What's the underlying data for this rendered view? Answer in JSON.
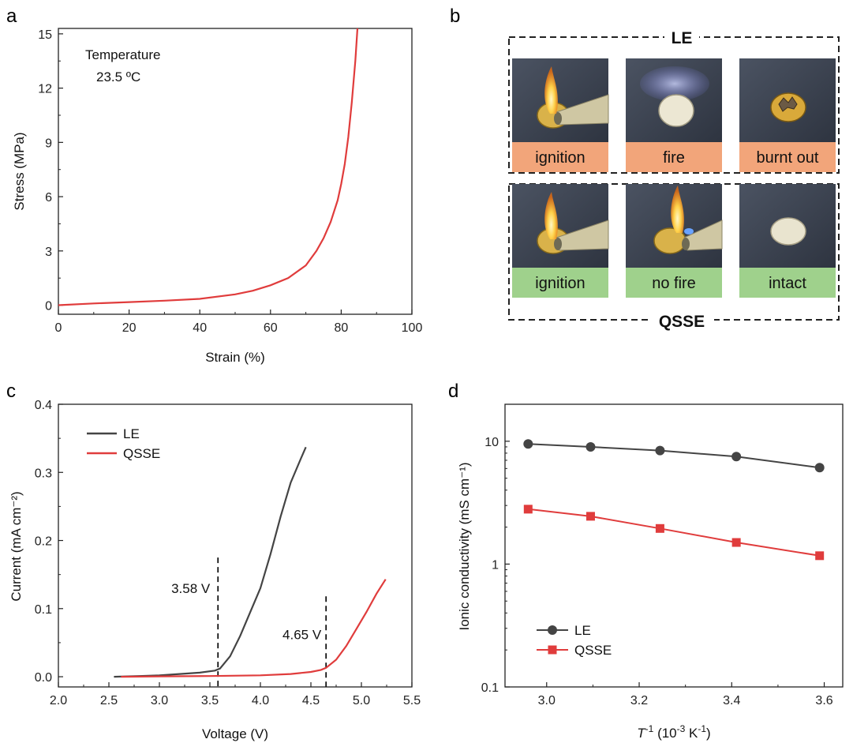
{
  "panels": {
    "a": "a",
    "b": "b",
    "c": "c",
    "d": "d"
  },
  "chart_data": [
    {
      "id": "a",
      "type": "line",
      "xlabel": "Strain (%)",
      "ylabel": "Stress (MPa)",
      "xlim": [
        0,
        100
      ],
      "ylim": [
        -0.5,
        15.3
      ],
      "xticks": [
        0,
        20,
        40,
        60,
        80,
        100
      ],
      "yticks": [
        0,
        3,
        6,
        9,
        12,
        15
      ],
      "annotation": [
        "Temperature",
        "23.5 ºC"
      ],
      "grid": false,
      "series": [
        {
          "color": "#e03c3c",
          "x": [
            0,
            10,
            20,
            30,
            40,
            50,
            55,
            60,
            65,
            70,
            73,
            75,
            77,
            79,
            80,
            81,
            82,
            83,
            84,
            84.6
          ],
          "y": [
            0,
            0.1,
            0.17,
            0.25,
            0.35,
            0.6,
            0.8,
            1.1,
            1.5,
            2.2,
            3.0,
            3.7,
            4.6,
            5.8,
            6.7,
            7.8,
            9.3,
            11.2,
            13.5,
            15.3
          ]
        }
      ]
    },
    {
      "id": "c",
      "type": "line",
      "xlabel": "Voltage (V)",
      "ylabel": "Current (mA cm⁻²)",
      "xlim": [
        2.0,
        5.5
      ],
      "ylim": [
        -0.015,
        0.4
      ],
      "xticks": [
        2.0,
        2.5,
        3.0,
        3.5,
        4.0,
        4.5,
        5.0,
        5.5
      ],
      "yticks": [
        0.0,
        0.1,
        0.2,
        0.3,
        0.4
      ],
      "legend": "top-left",
      "annotations": [
        {
          "text": "3.58 V",
          "x": 3.58,
          "y_top": 0.175
        },
        {
          "text": "4.65 V",
          "x": 4.65,
          "y_top": 0.118
        }
      ],
      "series": [
        {
          "name": "LE",
          "color": "#444444",
          "x": [
            2.55,
            2.8,
            3.0,
            3.2,
            3.4,
            3.55,
            3.6,
            3.7,
            3.8,
            3.9,
            4.0,
            4.1,
            4.2,
            4.3,
            4.4,
            4.45
          ],
          "y": [
            0,
            0.001,
            0.002,
            0.004,
            0.006,
            0.009,
            0.012,
            0.03,
            0.06,
            0.095,
            0.13,
            0.18,
            0.235,
            0.285,
            0.32,
            0.337
          ]
        },
        {
          "name": "QSSE",
          "color": "#e03c3c",
          "x": [
            2.62,
            3.0,
            3.5,
            4.0,
            4.3,
            4.5,
            4.6,
            4.65,
            4.75,
            4.85,
            4.95,
            5.05,
            5.15,
            5.24
          ],
          "y": [
            0,
            0.0005,
            0.001,
            0.002,
            0.004,
            0.007,
            0.01,
            0.013,
            0.025,
            0.045,
            0.07,
            0.095,
            0.122,
            0.143
          ]
        }
      ]
    },
    {
      "id": "d",
      "type": "line",
      "scale_y": "log",
      "xlabel_main": "T",
      "xlabel_sup": "-1",
      "xlabel_unit": "(10",
      "xlabel_unit_sup": "-3",
      "xlabel_unit_end": "K",
      "xlabel_unit_end_sup": "-1",
      "xlabel_close": ")",
      "ylabel": "Ionic conductivity (mS cm⁻¹)",
      "xlim": [
        2.91,
        3.64
      ],
      "ylim": [
        0.1,
        20
      ],
      "xticks": [
        3.0,
        3.2,
        3.4,
        3.6
      ],
      "xtick_labels": [
        "3.0",
        "3.2",
        "3.4",
        "3.6"
      ],
      "yticks": [
        0.1,
        1,
        10
      ],
      "ytick_labels": [
        "0.1",
        "1",
        "10"
      ],
      "legend": "bottom-left",
      "series": [
        {
          "name": "LE",
          "color": "#444444",
          "marker": "circle",
          "x": [
            2.96,
            3.095,
            3.245,
            3.41,
            3.59
          ],
          "y": [
            9.5,
            9.0,
            8.4,
            7.5,
            6.1
          ]
        },
        {
          "name": "QSSE",
          "color": "#e03c3c",
          "marker": "square",
          "x": [
            2.96,
            3.095,
            3.245,
            3.41,
            3.59
          ],
          "y": [
            2.8,
            2.45,
            1.95,
            1.5,
            1.17
          ]
        }
      ]
    }
  ],
  "panel_b": {
    "le_title": "LE",
    "qsse_title": "QSSE",
    "le_row": [
      {
        "label": "ignition",
        "label_color": "#f2a57a",
        "scene": "flame-on-coin-cell"
      },
      {
        "label": "fire",
        "label_color": "#f2a57a",
        "scene": "burning-cell"
      },
      {
        "label": "burnt out",
        "label_color": "#f2a57a",
        "scene": "charred-cell"
      }
    ],
    "qsse_row": [
      {
        "label": "ignition",
        "label_color": "#9fd18c",
        "scene": "flame-on-coin-cell"
      },
      {
        "label": "no fire",
        "label_color": "#9fd18c",
        "scene": "torch-no-fire"
      },
      {
        "label": "intact",
        "label_color": "#9fd18c",
        "scene": "intact-cell"
      }
    ]
  }
}
